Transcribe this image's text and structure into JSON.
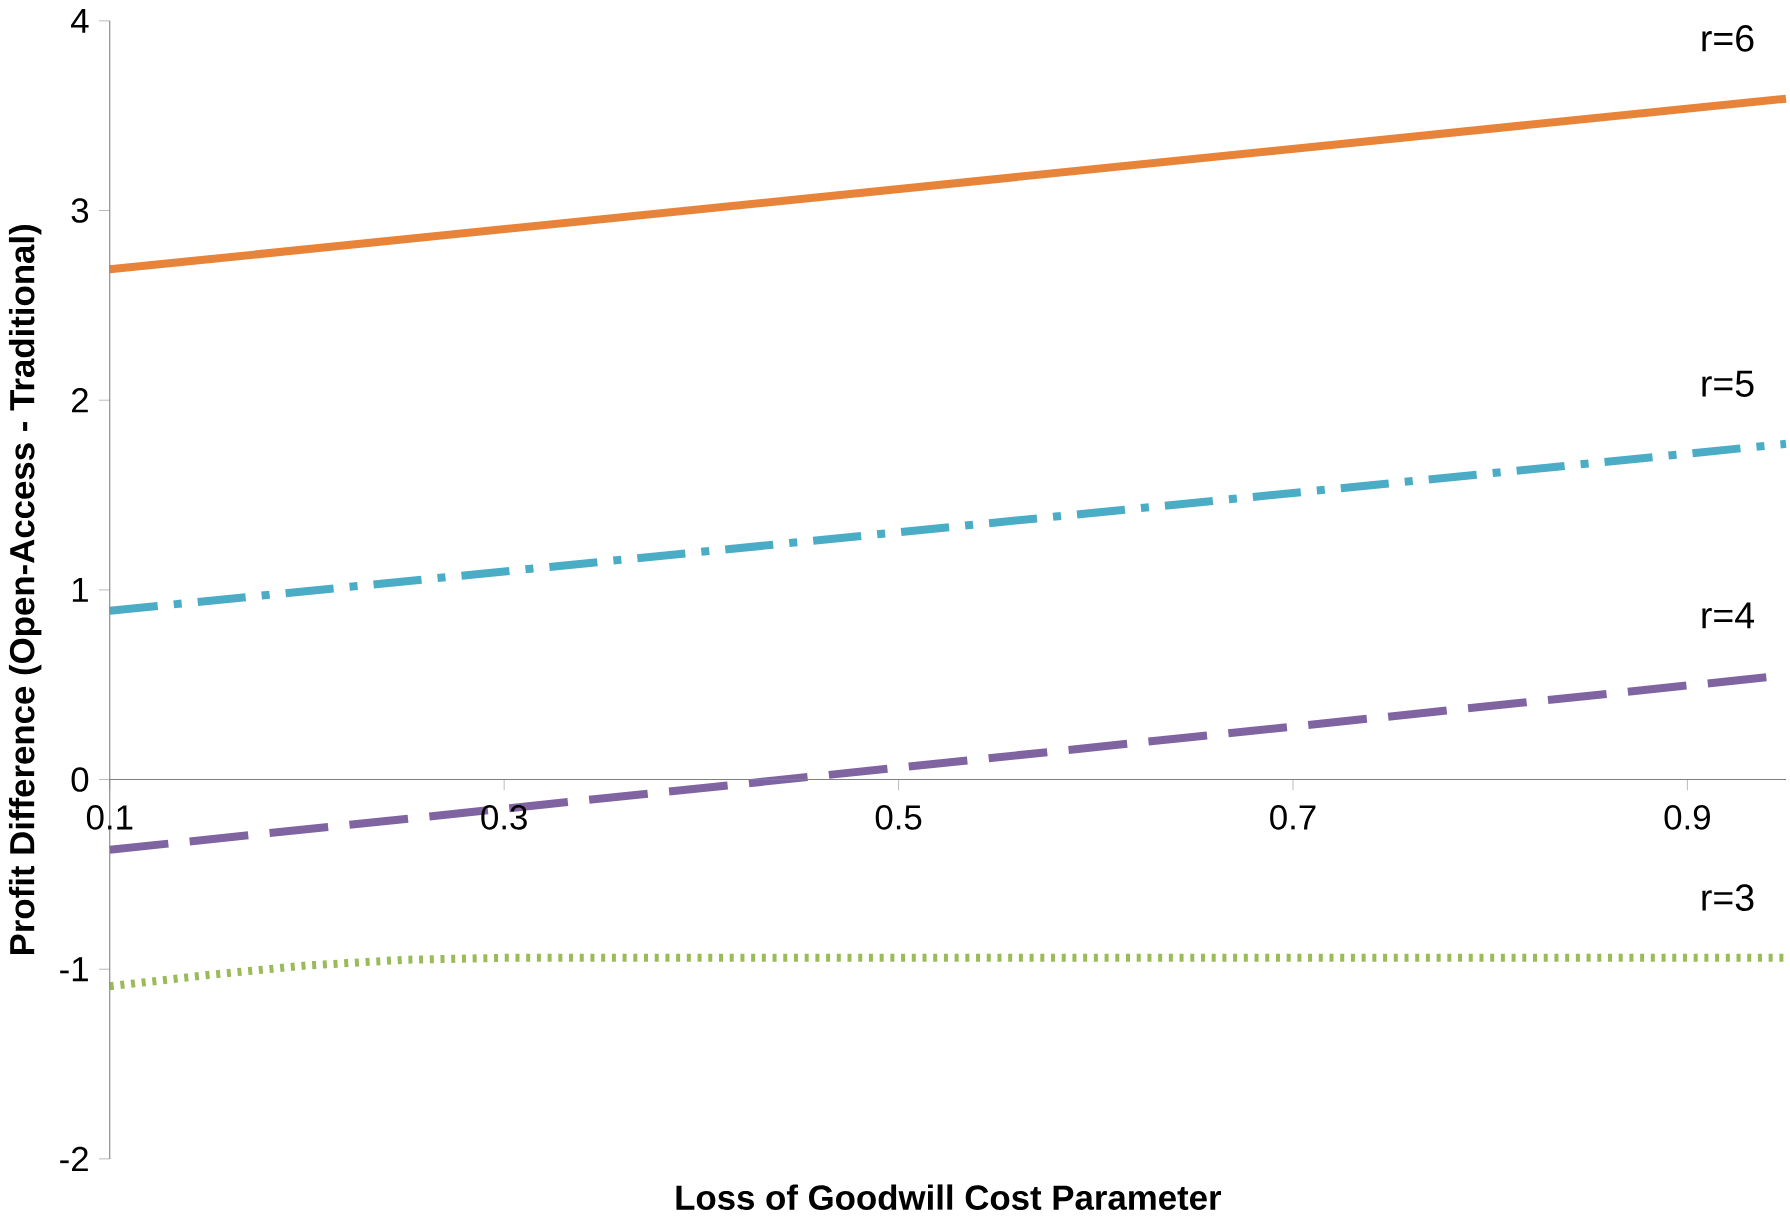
{
  "chart_data": {
    "type": "line",
    "xlabel": "Loss of Goodwill Cost Parameter",
    "ylabel": "Profit Difference (Open-Access - Traditional)",
    "xlim": [
      0.1,
      0.95
    ],
    "ylim": [
      -2,
      4
    ],
    "xticks": [
      0.1,
      0.3,
      0.5,
      0.7,
      0.9
    ],
    "yticks": [
      -2,
      -1,
      0,
      1,
      2,
      3,
      4
    ],
    "grid": false,
    "legend": false,
    "series": [
      {
        "name": "r=6",
        "x": [
          0.1,
          0.95
        ],
        "values": [
          2.69,
          3.59
        ],
        "color": "#e8833a",
        "line_style": "solid"
      },
      {
        "name": "r=5",
        "x": [
          0.1,
          0.95
        ],
        "values": [
          0.89,
          1.77
        ],
        "color": "#4bacc6",
        "line_style": "dashdot"
      },
      {
        "name": "r=4",
        "x": [
          0.1,
          0.95
        ],
        "values": [
          -0.37,
          0.55
        ],
        "color": "#8064a2",
        "line_style": "dashed"
      },
      {
        "name": "r=3",
        "x": [
          0.1,
          0.15,
          0.2,
          0.25,
          0.3,
          0.5,
          0.7,
          0.95
        ],
        "values": [
          -1.09,
          -1.03,
          -0.98,
          -0.95,
          -0.94,
          -0.94,
          -0.94,
          -0.94
        ],
        "color": "#9bbb59",
        "line_style": "dotted"
      }
    ]
  }
}
